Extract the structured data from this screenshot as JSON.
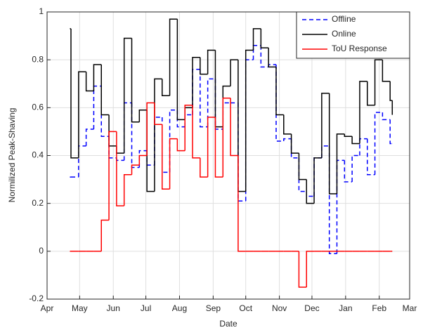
{
  "chart_data": {
    "type": "stairs",
    "xlabel": "Date",
    "ylabel": "Normilized Peak-Shaving",
    "x": [
      21,
      22,
      29,
      36,
      43,
      50,
      57,
      64,
      71,
      78,
      85,
      92,
      99,
      106,
      113,
      120,
      127,
      134,
      141,
      148,
      155,
      162,
      169,
      176,
      183,
      190,
      197,
      204,
      211,
      218,
      225,
      232,
      239,
      246,
      253,
      260,
      267,
      274,
      281,
      288,
      295,
      302,
      309,
      316,
      318
    ],
    "series": [
      {
        "name": "Offline",
        "color": "#0000ff",
        "line_style": "dashed",
        "values": [
          0.31,
          0.31,
          0.44,
          0.51,
          0.69,
          0.48,
          0.39,
          0.38,
          0.62,
          0.35,
          0.42,
          0.36,
          0.56,
          0.33,
          0.59,
          0.52,
          0.57,
          0.76,
          0.52,
          0.72,
          0.51,
          0.62,
          0.62,
          0.21,
          0.8,
          0.86,
          0.77,
          0.78,
          0.46,
          0.47,
          0.39,
          0.25,
          0.23,
          0.39,
          0.44,
          -0.01,
          0.38,
          0.29,
          0.4,
          0.47,
          0.32,
          0.58,
          0.55,
          0.45,
          0.45
        ]
      },
      {
        "name": "Online",
        "color": "#000000",
        "line_style": "solid",
        "values": [
          0.93,
          0.39,
          0.75,
          0.67,
          0.78,
          0.57,
          0.44,
          0.41,
          0.89,
          0.54,
          0.59,
          0.25,
          0.72,
          0.65,
          0.97,
          0.55,
          0.6,
          0.81,
          0.74,
          0.84,
          0.52,
          0.69,
          0.8,
          0.25,
          0.84,
          0.93,
          0.85,
          0.77,
          0.57,
          0.49,
          0.41,
          0.3,
          0.2,
          0.39,
          0.66,
          0.24,
          0.49,
          0.48,
          0.45,
          0.71,
          0.61,
          0.8,
          0.71,
          0.63,
          0.57
        ]
      },
      {
        "name": "ToU Response",
        "color": "#ff0000",
        "line_style": "solid",
        "values": [
          0,
          0,
          0,
          0,
          0,
          0.13,
          0.5,
          0.19,
          0.32,
          0.36,
          0.4,
          0.62,
          0.53,
          0.26,
          0.47,
          0.42,
          0.61,
          0.39,
          0.31,
          0.56,
          0.31,
          0.64,
          0.4,
          0,
          0,
          0,
          0,
          0,
          0,
          0,
          0,
          -0.15,
          0,
          0,
          0,
          0,
          0,
          0,
          0,
          0,
          0,
          0,
          0,
          0,
          0
        ]
      }
    ],
    "xlim": [
      0,
      334
    ],
    "xticks": [
      {
        "value": 0,
        "label": "Apr"
      },
      {
        "value": 30,
        "label": "May"
      },
      {
        "value": 61,
        "label": "Jun"
      },
      {
        "value": 91,
        "label": "Jul"
      },
      {
        "value": 122,
        "label": "Aug"
      },
      {
        "value": 153,
        "label": "Sep"
      },
      {
        "value": 183,
        "label": "Oct"
      },
      {
        "value": 214,
        "label": "Nov"
      },
      {
        "value": 244,
        "label": "Dec"
      },
      {
        "value": 275,
        "label": "Jan"
      },
      {
        "value": 306,
        "label": "Feb"
      },
      {
        "value": 334,
        "label": "Mar"
      }
    ],
    "ylim": [
      -0.2,
      1
    ],
    "yticks": [
      -0.2,
      0,
      0.2,
      0.4,
      0.6,
      0.8,
      1
    ],
    "grid": true,
    "legend_position": "upper-right"
  }
}
